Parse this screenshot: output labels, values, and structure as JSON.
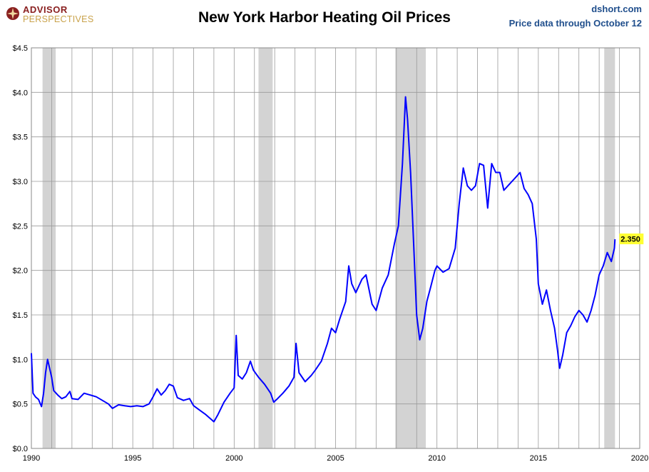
{
  "header": {
    "brand_line1": "ADVISOR",
    "brand_line2": "PERSPECTIVES",
    "source": "dshort.com",
    "subtitle": "Price data through October 12"
  },
  "chart_data": {
    "type": "line",
    "title": "New York Harbor Heating Oil Prices",
    "xlabel": "",
    "ylabel": "",
    "xlim": [
      1990,
      2020
    ],
    "ylim": [
      0,
      4.5
    ],
    "x_ticks": [
      "1990",
      "1995",
      "2000",
      "2005",
      "2010",
      "2015",
      "2020"
    ],
    "y_ticks": [
      "$0.0",
      "$0.5",
      "$1.0",
      "$1.5",
      "$2.0",
      "$2.5",
      "$3.0",
      "$3.5",
      "$4.0",
      "$4.5"
    ],
    "grid": true,
    "line_color": "#0000ff",
    "recession_color": "#d3d3d3",
    "recessions": [
      [
        1990.55,
        1991.2
      ],
      [
        2001.2,
        2001.9
      ],
      [
        2007.95,
        2009.45
      ],
      [
        2018.25,
        2018.78
      ]
    ],
    "last_value_label": "2.350",
    "series": [
      {
        "values": [
          [
            1990.0,
            1.07
          ],
          [
            1990.08,
            0.62
          ],
          [
            1990.2,
            0.58
          ],
          [
            1990.35,
            0.55
          ],
          [
            1990.5,
            0.47
          ],
          [
            1990.6,
            0.62
          ],
          [
            1990.7,
            0.85
          ],
          [
            1990.8,
            1.0
          ],
          [
            1990.9,
            0.9
          ],
          [
            1991.0,
            0.8
          ],
          [
            1991.1,
            0.65
          ],
          [
            1991.3,
            0.6
          ],
          [
            1991.5,
            0.56
          ],
          [
            1991.7,
            0.58
          ],
          [
            1991.9,
            0.64
          ],
          [
            1992.0,
            0.56
          ],
          [
            1992.3,
            0.55
          ],
          [
            1992.6,
            0.62
          ],
          [
            1992.9,
            0.6
          ],
          [
            1993.2,
            0.58
          ],
          [
            1993.5,
            0.54
          ],
          [
            1993.8,
            0.5
          ],
          [
            1994.0,
            0.45
          ],
          [
            1994.3,
            0.49
          ],
          [
            1994.6,
            0.48
          ],
          [
            1994.9,
            0.47
          ],
          [
            1995.2,
            0.48
          ],
          [
            1995.5,
            0.47
          ],
          [
            1995.8,
            0.5
          ],
          [
            1996.0,
            0.58
          ],
          [
            1996.2,
            0.67
          ],
          [
            1996.4,
            0.6
          ],
          [
            1996.6,
            0.65
          ],
          [
            1996.8,
            0.72
          ],
          [
            1997.0,
            0.7
          ],
          [
            1997.2,
            0.57
          ],
          [
            1997.5,
            0.54
          ],
          [
            1997.8,
            0.56
          ],
          [
            1998.0,
            0.48
          ],
          [
            1998.3,
            0.43
          ],
          [
            1998.6,
            0.38
          ],
          [
            1998.9,
            0.32
          ],
          [
            1999.0,
            0.3
          ],
          [
            1999.2,
            0.38
          ],
          [
            1999.5,
            0.52
          ],
          [
            1999.8,
            0.62
          ],
          [
            2000.0,
            0.68
          ],
          [
            2000.1,
            1.27
          ],
          [
            2000.2,
            0.82
          ],
          [
            2000.4,
            0.78
          ],
          [
            2000.6,
            0.85
          ],
          [
            2000.8,
            0.98
          ],
          [
            2000.95,
            0.88
          ],
          [
            2001.2,
            0.8
          ],
          [
            2001.5,
            0.72
          ],
          [
            2001.8,
            0.62
          ],
          [
            2001.95,
            0.52
          ],
          [
            2002.1,
            0.55
          ],
          [
            2002.4,
            0.62
          ],
          [
            2002.7,
            0.7
          ],
          [
            2002.95,
            0.8
          ],
          [
            2003.05,
            1.18
          ],
          [
            2003.2,
            0.85
          ],
          [
            2003.5,
            0.75
          ],
          [
            2003.8,
            0.82
          ],
          [
            2004.0,
            0.88
          ],
          [
            2004.3,
            0.98
          ],
          [
            2004.6,
            1.18
          ],
          [
            2004.8,
            1.35
          ],
          [
            2005.0,
            1.3
          ],
          [
            2005.2,
            1.45
          ],
          [
            2005.5,
            1.65
          ],
          [
            2005.65,
            2.05
          ],
          [
            2005.8,
            1.85
          ],
          [
            2006.0,
            1.75
          ],
          [
            2006.3,
            1.9
          ],
          [
            2006.5,
            1.95
          ],
          [
            2006.8,
            1.62
          ],
          [
            2007.0,
            1.55
          ],
          [
            2007.3,
            1.8
          ],
          [
            2007.6,
            1.95
          ],
          [
            2007.9,
            2.3
          ],
          [
            2008.1,
            2.5
          ],
          [
            2008.3,
            3.2
          ],
          [
            2008.45,
            3.95
          ],
          [
            2008.55,
            3.7
          ],
          [
            2008.7,
            3.1
          ],
          [
            2008.85,
            2.3
          ],
          [
            2009.0,
            1.5
          ],
          [
            2009.15,
            1.22
          ],
          [
            2009.3,
            1.35
          ],
          [
            2009.5,
            1.65
          ],
          [
            2009.7,
            1.82
          ],
          [
            2009.9,
            2.0
          ],
          [
            2010.0,
            2.05
          ],
          [
            2010.3,
            1.98
          ],
          [
            2010.6,
            2.02
          ],
          [
            2010.9,
            2.25
          ],
          [
            2011.1,
            2.75
          ],
          [
            2011.3,
            3.15
          ],
          [
            2011.5,
            2.95
          ],
          [
            2011.7,
            2.9
          ],
          [
            2011.9,
            2.95
          ],
          [
            2012.1,
            3.2
          ],
          [
            2012.3,
            3.18
          ],
          [
            2012.5,
            2.7
          ],
          [
            2012.7,
            3.2
          ],
          [
            2012.9,
            3.1
          ],
          [
            2013.1,
            3.1
          ],
          [
            2013.3,
            2.9
          ],
          [
            2013.5,
            2.95
          ],
          [
            2013.7,
            3.0
          ],
          [
            2013.9,
            3.05
          ],
          [
            2014.1,
            3.1
          ],
          [
            2014.3,
            2.92
          ],
          [
            2014.5,
            2.85
          ],
          [
            2014.7,
            2.75
          ],
          [
            2014.9,
            2.35
          ],
          [
            2015.0,
            1.85
          ],
          [
            2015.2,
            1.62
          ],
          [
            2015.4,
            1.78
          ],
          [
            2015.6,
            1.55
          ],
          [
            2015.8,
            1.35
          ],
          [
            2015.95,
            1.1
          ],
          [
            2016.05,
            0.9
          ],
          [
            2016.2,
            1.05
          ],
          [
            2016.4,
            1.3
          ],
          [
            2016.6,
            1.38
          ],
          [
            2016.8,
            1.48
          ],
          [
            2017.0,
            1.55
          ],
          [
            2017.2,
            1.5
          ],
          [
            2017.4,
            1.42
          ],
          [
            2017.6,
            1.55
          ],
          [
            2017.8,
            1.72
          ],
          [
            2018.0,
            1.95
          ],
          [
            2018.2,
            2.05
          ],
          [
            2018.4,
            2.2
          ],
          [
            2018.6,
            2.1
          ],
          [
            2018.75,
            2.25
          ],
          [
            2018.78,
            2.35
          ]
        ]
      }
    ]
  }
}
